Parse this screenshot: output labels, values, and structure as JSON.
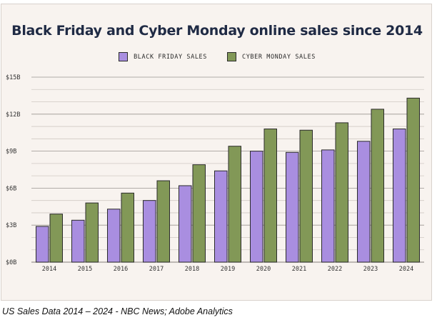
{
  "chart_data": {
    "type": "bar",
    "title": "Black Friday and Cyber Monday online sales since 2014",
    "categories": [
      "2014",
      "2015",
      "2016",
      "2017",
      "2018",
      "2019",
      "2020",
      "2021",
      "2022",
      "2023",
      "2024"
    ],
    "series": [
      {
        "name": "BLACK FRIDAY SALES",
        "color": "#a98ee0",
        "values": [
          2.9,
          3.4,
          4.3,
          5.0,
          6.2,
          7.4,
          9.0,
          8.9,
          9.1,
          9.8,
          10.8
        ]
      },
      {
        "name": "CYBER MONDAY SALES",
        "color": "#829857",
        "values": [
          3.9,
          4.8,
          5.6,
          6.6,
          7.9,
          9.4,
          10.8,
          10.7,
          11.3,
          12.4,
          13.3
        ]
      }
    ],
    "ylim": [
      0,
      15
    ],
    "yticks": [
      0,
      3,
      6,
      9,
      12,
      15
    ],
    "ytick_labels": [
      "$0B",
      "$3B",
      "$6B",
      "$9B",
      "$12B",
      "$15B"
    ],
    "xlabel": "",
    "ylabel": "",
    "grid": true,
    "legend": "top-center"
  },
  "caption": "US Sales Data 2014 – 2024 - NBC News; Adobe Analytics"
}
